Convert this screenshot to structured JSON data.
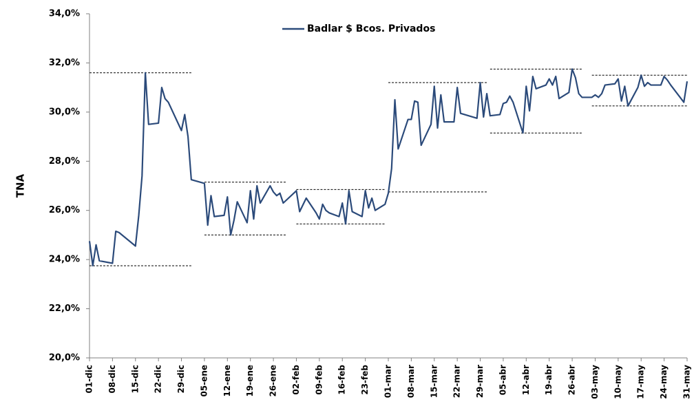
{
  "chart_data": {
    "type": "line",
    "y_label": "TNA",
    "x": [
      0,
      1,
      2,
      3,
      7,
      8,
      9,
      14,
      15,
      16,
      17,
      18,
      21,
      22,
      23,
      24,
      28,
      29,
      30,
      31,
      35,
      36,
      37,
      38,
      41,
      42,
      43,
      44,
      45,
      48,
      49,
      50,
      51,
      52,
      55,
      56,
      57,
      58,
      59,
      63,
      64,
      66,
      69,
      70,
      71,
      72,
      73,
      76,
      77,
      78,
      79,
      80,
      83,
      84,
      85,
      86,
      87,
      90,
      91,
      92,
      93,
      94,
      97,
      98,
      99,
      100,
      101,
      104,
      105,
      106,
      107,
      108,
      111,
      112,
      113,
      118,
      119,
      120,
      121,
      122,
      125,
      126,
      127,
      128,
      129,
      132,
      133,
      134,
      135,
      136,
      139,
      140,
      141,
      142,
      143,
      146,
      147,
      148,
      149,
      150,
      153,
      154,
      155,
      156,
      157,
      160,
      161,
      162,
      163,
      164,
      167,
      168,
      169,
      170,
      171,
      174,
      175,
      176,
      177,
      181,
      182
    ],
    "series": [
      {
        "name": "Badlar $ Bcos. Privados",
        "color": "#2b4a7a",
        "values": [
          24.75,
          23.75,
          24.6,
          23.95,
          23.85,
          25.15,
          25.1,
          24.55,
          25.8,
          27.4,
          31.6,
          29.5,
          29.55,
          31.0,
          30.55,
          30.4,
          29.25,
          29.9,
          29.0,
          27.25,
          27.1,
          25.4,
          26.6,
          25.75,
          25.8,
          26.55,
          25.0,
          25.6,
          26.35,
          25.5,
          26.8,
          25.65,
          27.0,
          26.3,
          27.0,
          26.75,
          26.6,
          26.7,
          26.3,
          26.8,
          25.95,
          26.5,
          25.9,
          25.65,
          26.25,
          26.0,
          25.9,
          25.75,
          26.3,
          25.45,
          26.8,
          25.95,
          25.75,
          26.8,
          26.1,
          26.5,
          26.0,
          26.25,
          26.7,
          27.7,
          30.5,
          28.5,
          29.7,
          29.7,
          30.45,
          30.4,
          28.65,
          29.5,
          31.05,
          29.35,
          30.7,
          29.6,
          29.6,
          31.0,
          29.95,
          29.75,
          31.2,
          29.8,
          30.75,
          29.85,
          29.9,
          30.35,
          30.4,
          30.65,
          30.4,
          29.15,
          31.05,
          30.05,
          31.45,
          30.95,
          31.1,
          31.35,
          31.1,
          31.45,
          30.55,
          30.8,
          31.75,
          31.4,
          30.75,
          30.6,
          30.6,
          30.7,
          30.6,
          30.75,
          31.1,
          31.15,
          31.35,
          30.45,
          31.05,
          30.25,
          31.0,
          31.5,
          31.05,
          31.2,
          31.1,
          31.1,
          31.45,
          31.3,
          31.1,
          30.4,
          31.25
        ]
      }
    ],
    "reference_lines": [
      {
        "y": 31.6,
        "x": [
          0,
          31
        ]
      },
      {
        "y": 23.75,
        "x": [
          0,
          31
        ]
      },
      {
        "y": 27.15,
        "x": [
          35,
          60
        ]
      },
      {
        "y": 25.0,
        "x": [
          35,
          60
        ]
      },
      {
        "y": 26.85,
        "x": [
          63,
          90
        ]
      },
      {
        "y": 25.45,
        "x": [
          63,
          90
        ]
      },
      {
        "y": 31.2,
        "x": [
          91,
          121
        ]
      },
      {
        "y": 26.75,
        "x": [
          91,
          121
        ]
      },
      {
        "y": 31.75,
        "x": [
          122,
          150
        ]
      },
      {
        "y": 29.15,
        "x": [
          122,
          150
        ]
      },
      {
        "y": 31.5,
        "x": [
          153,
          182
        ]
      },
      {
        "y": 30.25,
        "x": [
          153,
          182
        ]
      }
    ],
    "xlim": [
      0,
      182
    ],
    "xticks": [
      {
        "value": 0,
        "label": "01-dic"
      },
      {
        "value": 7,
        "label": "08-dic"
      },
      {
        "value": 14,
        "label": "15-dic"
      },
      {
        "value": 21,
        "label": "22-dic"
      },
      {
        "value": 28,
        "label": "29-dic"
      },
      {
        "value": 35,
        "label": "05-ene"
      },
      {
        "value": 42,
        "label": "12-ene"
      },
      {
        "value": 49,
        "label": "19-ene"
      },
      {
        "value": 56,
        "label": "26-ene"
      },
      {
        "value": 63,
        "label": "02-feb"
      },
      {
        "value": 70,
        "label": "09-feb"
      },
      {
        "value": 77,
        "label": "16-feb"
      },
      {
        "value": 84,
        "label": "23-feb"
      },
      {
        "value": 91,
        "label": "01-mar"
      },
      {
        "value": 98,
        "label": "08-mar"
      },
      {
        "value": 105,
        "label": "15-mar"
      },
      {
        "value": 112,
        "label": "22-mar"
      },
      {
        "value": 119,
        "label": "29-mar"
      },
      {
        "value": 126,
        "label": "05-abr"
      },
      {
        "value": 133,
        "label": "12-abr"
      },
      {
        "value": 140,
        "label": "19-abr"
      },
      {
        "value": 147,
        "label": "26-abr"
      },
      {
        "value": 154,
        "label": "03-may"
      },
      {
        "value": 161,
        "label": "10-may"
      },
      {
        "value": 168,
        "label": "17-may"
      },
      {
        "value": 175,
        "label": "24-may"
      },
      {
        "value": 182,
        "label": "31-may"
      }
    ],
    "ylim": [
      20,
      34
    ],
    "yticks": [
      {
        "value": 20,
        "label": "20,0%"
      },
      {
        "value": 22,
        "label": "22,0%"
      },
      {
        "value": 24,
        "label": "24,0%"
      },
      {
        "value": 26,
        "label": "26,0%"
      },
      {
        "value": 28,
        "label": "28,0%"
      },
      {
        "value": 30,
        "label": "30,0%"
      },
      {
        "value": 32,
        "label": "32,0%"
      },
      {
        "value": 34,
        "label": "34,0%"
      }
    ],
    "grid": false,
    "legend": "top"
  }
}
